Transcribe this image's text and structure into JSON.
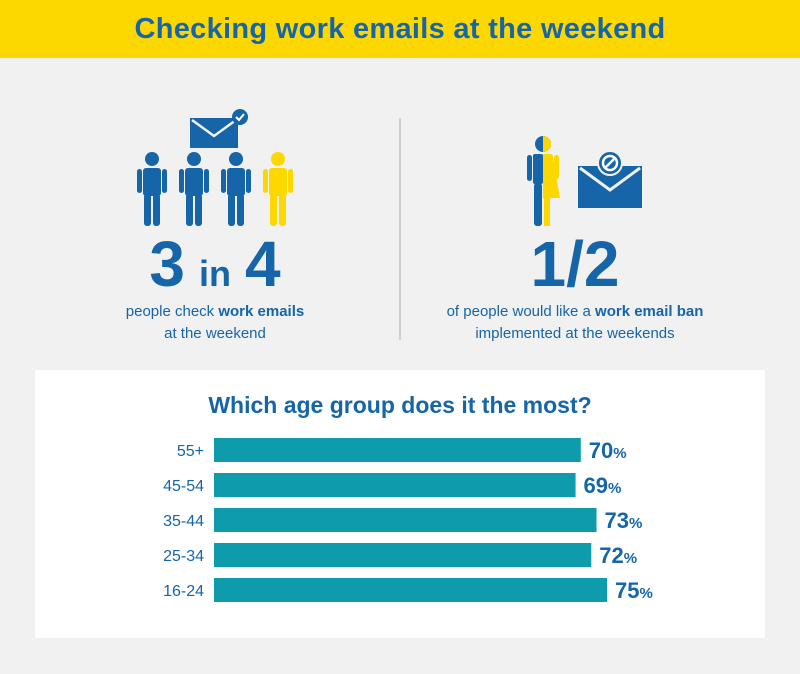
{
  "title": "Checking work emails at the weekend",
  "left_stat": {
    "num_a": "3",
    "word_in": "in",
    "num_b": "4",
    "caption_pre": "people check ",
    "caption_bold": "work emails",
    "caption_post": "at the weekend"
  },
  "right_stat": {
    "value": "1/2",
    "caption_pre": "of people would like a ",
    "caption_bold": "work email ban",
    "caption_post": "implemented at the weekends"
  },
  "icons": {
    "people": [
      "person-icon",
      "person-icon",
      "person-icon",
      "person-icon-highlight"
    ],
    "email_check": "email-check-icon",
    "half_person": "half-person-icon",
    "email_ban": "email-ban-icon"
  },
  "colors": {
    "banner": "#fdd800",
    "accent_blue": "#1565a8",
    "bar": "#0e9bab",
    "highlight_yellow": "#fdd800",
    "background": "#f1f1f1"
  },
  "chart_data": {
    "type": "bar",
    "orientation": "horizontal",
    "title": "Which age group does it the most?",
    "categories": [
      "55+",
      "45-54",
      "35-44",
      "25-34",
      "16-24"
    ],
    "values": [
      70,
      69,
      73,
      72,
      75
    ],
    "value_suffix": "%",
    "xlim": [
      0,
      75
    ],
    "grid": false
  }
}
